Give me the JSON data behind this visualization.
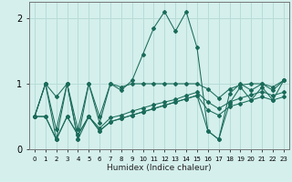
{
  "xlabel": "Humidex (Indice chaleur)",
  "bg_color": "#d4efec",
  "grid_color": "#b8dcd8",
  "line_color": "#1a6b5a",
  "x": [
    0,
    1,
    2,
    3,
    4,
    5,
    6,
    7,
    8,
    9,
    10,
    11,
    12,
    13,
    14,
    15,
    16,
    17,
    18,
    19,
    20,
    21,
    22,
    23
  ],
  "series": [
    [
      0.5,
      1.0,
      0.8,
      1.0,
      0.15,
      1.0,
      0.4,
      1.0,
      0.9,
      1.05,
      1.45,
      1.85,
      2.1,
      1.8,
      2.1,
      1.55,
      0.28,
      0.15,
      0.85,
      1.0,
      0.9,
      1.0,
      0.9,
      1.05
    ],
    [
      0.5,
      1.0,
      0.3,
      1.0,
      0.3,
      1.0,
      0.5,
      1.0,
      0.95,
      1.0,
      1.0,
      1.0,
      1.0,
      1.0,
      1.0,
      1.0,
      0.92,
      0.78,
      0.92,
      0.98,
      1.0,
      1.0,
      0.95,
      1.05
    ],
    [
      0.5,
      0.5,
      0.15,
      0.5,
      0.22,
      0.5,
      0.32,
      0.48,
      0.52,
      0.58,
      0.63,
      0.68,
      0.72,
      0.76,
      0.82,
      0.87,
      0.72,
      0.62,
      0.72,
      0.78,
      0.83,
      0.88,
      0.82,
      0.87
    ],
    [
      0.5,
      0.5,
      0.15,
      0.5,
      0.22,
      0.5,
      0.28,
      0.42,
      0.47,
      0.52,
      0.57,
      0.62,
      0.67,
      0.72,
      0.77,
      0.82,
      0.6,
      0.52,
      0.65,
      0.7,
      0.75,
      0.8,
      0.75,
      0.8
    ],
    [
      0.5,
      1.0,
      0.15,
      1.0,
      0.15,
      0.5,
      0.28,
      0.42,
      0.47,
      0.52,
      0.57,
      0.62,
      0.67,
      0.72,
      0.77,
      0.82,
      0.28,
      0.15,
      0.7,
      0.95,
      0.75,
      0.95,
      0.75,
      1.05
    ]
  ],
  "ylim": [
    0.0,
    2.25
  ],
  "xlim": [
    -0.5,
    23.5
  ],
  "yticks": [
    0,
    1,
    2
  ],
  "markersize": 2.0,
  "linewidth": 0.75
}
